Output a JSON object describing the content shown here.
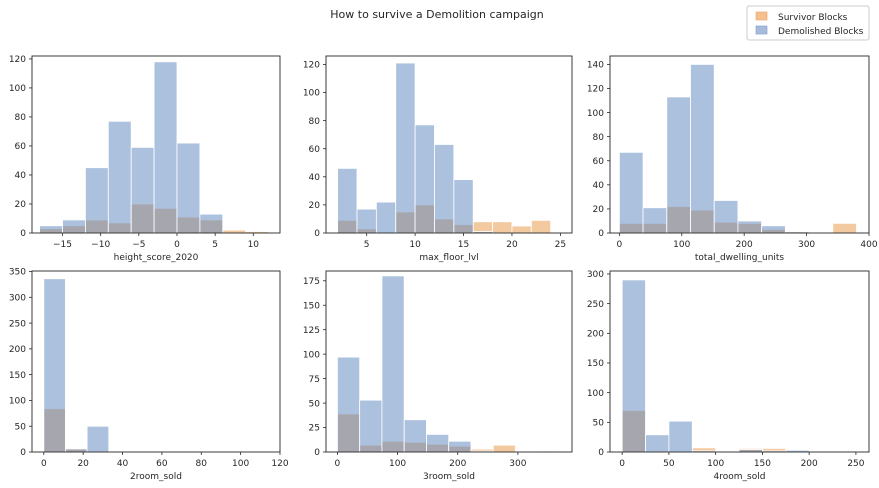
{
  "figure_title": "How to survive a Demolition campaign",
  "legend": {
    "items": [
      {
        "label": "Survivor Blocks",
        "color": "#f5c08e"
      },
      {
        "label": "Demolished Blocks",
        "color": "#a7bcdc"
      }
    ]
  },
  "colors": {
    "survivor": "#e8953f",
    "demolished": "#5a84bd",
    "overlap": "#b8a186",
    "axes_edge": "#262626",
    "bar_edge": "#ffffff"
  },
  "chart_data": [
    {
      "type": "bar",
      "xlabel": "height_score_2020",
      "xlim": [
        -19,
        13.5
      ],
      "ylim": [
        0,
        122
      ],
      "xticks": [
        -15,
        -10,
        -5,
        0,
        5,
        10
      ],
      "xtick_labels": [
        "−15",
        "−10",
        "−5",
        "0",
        "5",
        "10"
      ],
      "yticks": [
        0,
        20,
        40,
        60,
        80,
        100,
        120
      ],
      "series": [
        {
          "name": "Demolished Blocks",
          "edges": [
            -18,
            -15,
            -12,
            -9,
            -6,
            -3,
            0,
            3,
            6
          ],
          "values": [
            5,
            9,
            45,
            77,
            59,
            118,
            62,
            13
          ]
        },
        {
          "name": "Survivor Blocks",
          "edges": [
            -18,
            -15,
            -12,
            -9,
            -6,
            -3,
            0,
            3,
            6,
            9,
            12
          ],
          "values": [
            3,
            5,
            9,
            7,
            20,
            17,
            11,
            9,
            2,
            1
          ]
        }
      ]
    },
    {
      "type": "bar",
      "xlabel": "max_floor_lvl",
      "xlim": [
        0.8,
        26.2
      ],
      "ylim": [
        0,
        126
      ],
      "xticks": [
        5,
        10,
        15,
        20,
        25
      ],
      "xtick_labels": [
        "5",
        "10",
        "15",
        "20",
        "25"
      ],
      "yticks": [
        0,
        20,
        40,
        60,
        80,
        100,
        120
      ],
      "series": [
        {
          "name": "Demolished Blocks",
          "edges": [
            2,
            4,
            6,
            8,
            10,
            12,
            14,
            16,
            18
          ],
          "values": [
            46,
            17,
            22,
            121,
            77,
            63,
            38,
            1
          ]
        },
        {
          "name": "Survivor Blocks",
          "edges": [
            2,
            4,
            6,
            8,
            10,
            12,
            14,
            16,
            18,
            20,
            22,
            24
          ],
          "values": [
            9,
            3,
            0,
            15,
            20,
            10,
            6,
            8,
            8,
            5,
            9
          ]
        }
      ]
    },
    {
      "type": "bar",
      "xlabel": "total_dwelling_units",
      "xlim": [
        -15,
        400
      ],
      "ylim": [
        0,
        147
      ],
      "xticks": [
        0,
        100,
        200,
        300,
        400
      ],
      "xtick_labels": [
        "0",
        "100",
        "200",
        "300",
        "400"
      ],
      "yticks": [
        0,
        20,
        40,
        60,
        80,
        100,
        120,
        140
      ],
      "series": [
        {
          "name": "Demolished Blocks",
          "edges": [
            0,
            38,
            76,
            114,
            152,
            190,
            228,
            266,
            304
          ],
          "values": [
            67,
            21,
            113,
            140,
            27,
            10,
            6,
            1
          ]
        },
        {
          "name": "Survivor Blocks",
          "edges": [
            0,
            38,
            76,
            114,
            152,
            190,
            228,
            266,
            304,
            342,
            380
          ],
          "values": [
            8,
            8,
            22,
            19,
            9,
            8,
            3,
            1,
            0,
            8
          ]
        }
      ]
    },
    {
      "type": "bar",
      "xlabel": "2room_sold",
      "xlim": [
        -6,
        120
      ],
      "ylim": [
        0,
        351
      ],
      "xticks": [
        0,
        20,
        40,
        60,
        80,
        100,
        120
      ],
      "xtick_labels": [
        "0",
        "20",
        "40",
        "60",
        "80",
        "100",
        "120"
      ],
      "yticks": [
        0,
        50,
        100,
        150,
        200,
        250,
        300,
        350
      ],
      "series": [
        {
          "name": "Demolished Blocks",
          "edges": [
            0,
            11,
            22,
            33
          ],
          "values": [
            336,
            6,
            50
          ]
        },
        {
          "name": "Survivor Blocks",
          "edges": [
            0,
            11,
            22,
            33,
            44,
            55,
            66,
            77,
            88,
            99,
            110
          ],
          "values": [
            84,
            6,
            1,
            0,
            0,
            0,
            0,
            0,
            0,
            1
          ]
        }
      ]
    },
    {
      "type": "bar",
      "xlabel": "3room_sold",
      "xlim": [
        -19,
        390
      ],
      "ylim": [
        0,
        185
      ],
      "xticks": [
        0,
        100,
        200,
        300
      ],
      "xtick_labels": [
        "0",
        "100",
        "200",
        "300"
      ],
      "yticks": [
        0,
        25,
        50,
        75,
        100,
        125,
        150,
        175
      ],
      "series": [
        {
          "name": "Demolished Blocks",
          "edges": [
            0,
            37,
            74,
            111,
            148,
            185,
            222,
            259,
            296,
            333,
            370
          ],
          "values": [
            97,
            53,
            180,
            33,
            18,
            11,
            1,
            0,
            0,
            1
          ]
        },
        {
          "name": "Survivor Blocks",
          "edges": [
            0,
            37,
            74,
            111,
            148,
            185,
            222,
            259,
            296
          ],
          "values": [
            39,
            7,
            11,
            10,
            8,
            6,
            3,
            7
          ]
        }
      ]
    },
    {
      "type": "bar",
      "xlabel": "4room_sold",
      "xlim": [
        -13,
        264
      ],
      "ylim": [
        0,
        305
      ],
      "xticks": [
        0,
        50,
        100,
        150,
        200,
        250
      ],
      "xtick_labels": [
        "0",
        "50",
        "100",
        "150",
        "200",
        "250"
      ],
      "yticks": [
        0,
        50,
        100,
        150,
        200,
        250,
        300
      ],
      "series": [
        {
          "name": "Demolished Blocks",
          "edges": [
            0,
            25,
            50,
            75,
            100,
            125,
            150,
            175,
            200,
            225,
            250
          ],
          "values": [
            290,
            29,
            52,
            2,
            1,
            4,
            2,
            3,
            0,
            1
          ]
        },
        {
          "name": "Survivor Blocks",
          "edges": [
            0,
            25,
            50,
            75,
            100,
            125,
            150,
            175,
            200,
            225,
            250
          ],
          "values": [
            70,
            0,
            0,
            7,
            0,
            6,
            6,
            1,
            0,
            1
          ]
        }
      ]
    }
  ]
}
